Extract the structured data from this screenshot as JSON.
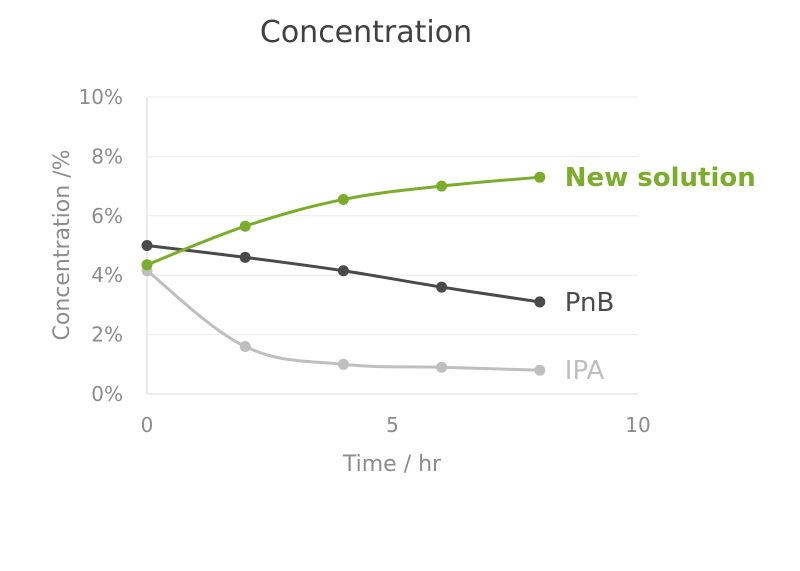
{
  "chart_data": {
    "type": "line",
    "title": "Concentration",
    "xlabel": "Time / hr",
    "ylabel": "Concentration /%",
    "xlim": [
      0,
      10
    ],
    "ylim": [
      0,
      10
    ],
    "x_ticks": [
      0,
      5,
      10
    ],
    "x_tick_labels": [
      "0",
      "5",
      "10"
    ],
    "y_ticks": [
      0,
      2,
      4,
      6,
      8,
      10
    ],
    "y_tick_labels": [
      "0%",
      "2%",
      "4%",
      "6%",
      "8%",
      "10%"
    ],
    "grid": true,
    "legend": "inline-right",
    "series": [
      {
        "name": "New solution",
        "color": "#7aad2b",
        "bold": true,
        "x": [
          0,
          2,
          4,
          6,
          8
        ],
        "y": [
          4.35,
          5.65,
          6.55,
          7.0,
          7.3
        ]
      },
      {
        "name": "PnB",
        "color": "#4a4a4a",
        "bold": false,
        "x": [
          0,
          2,
          4,
          6,
          8
        ],
        "y": [
          5.0,
          4.6,
          4.15,
          3.6,
          3.1
        ]
      },
      {
        "name": "IPA",
        "color": "#bfbfbf",
        "bold": false,
        "x": [
          0,
          2,
          4,
          6,
          8
        ],
        "y": [
          4.15,
          1.6,
          1.0,
          0.9,
          0.8
        ]
      }
    ]
  }
}
